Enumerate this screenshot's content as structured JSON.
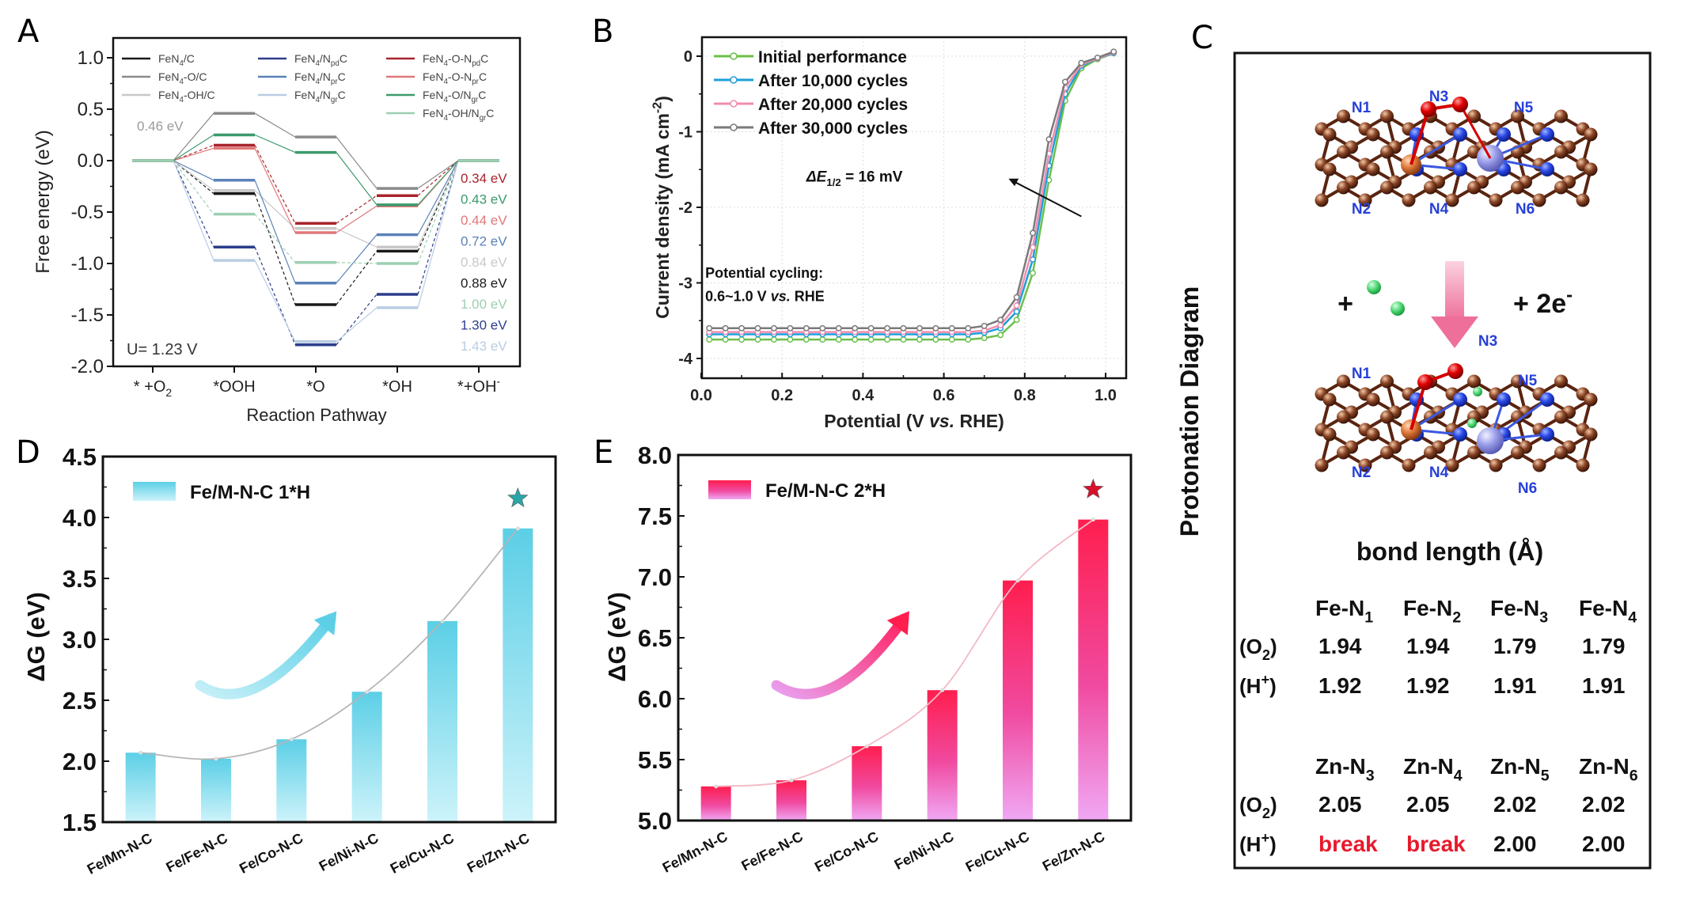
{
  "panel_labels": {
    "A": "A",
    "B": "B",
    "C": "C",
    "D": "D",
    "E": "E"
  },
  "chart_data": [
    {
      "panel": "A",
      "type": "line",
      "subtype": "free-energy step diagram",
      "xlabel": "Reaction Pathway",
      "ylabel": "Free energy (eV)",
      "categories": [
        "* +O_{2}",
        "*OOH",
        "*O",
        "*OH",
        "*+OH^{-}"
      ],
      "ylim": [
        -2.0,
        1.2
      ],
      "yticks": [
        -2.0,
        -1.5,
        -1.0,
        -0.5,
        0.0,
        0.5,
        1.0
      ],
      "ytick_labels": [
        "-2.0",
        "-1.5",
        "-1.0",
        "-0.5",
        "0.0",
        "0.5",
        "1.0"
      ],
      "grid": false,
      "legend": "top",
      "series": [
        {
          "name": "FeN_{4}/C",
          "color": "#1a1a1a",
          "values": [
            0,
            -0.32,
            -1.4,
            -0.88,
            0
          ]
        },
        {
          "name": "FeN_{4}-O/C",
          "color": "#8a8a8a",
          "values": [
            0,
            0.46,
            0.23,
            -0.27,
            0
          ]
        },
        {
          "name": "FeN_{4}-OH/C",
          "color": "#c8c8c8",
          "values": [
            0,
            -0.29,
            -0.66,
            -0.84,
            0
          ]
        },
        {
          "name": "FeN_{4}/N_{pd}C",
          "color": "#2c3e8c",
          "values": [
            0,
            -0.84,
            -1.79,
            -1.3,
            0
          ]
        },
        {
          "name": "FeN_{4}/N_{pr}C",
          "color": "#5b82b8",
          "values": [
            0,
            -0.19,
            -1.19,
            -0.72,
            0
          ]
        },
        {
          "name": "FeN_{4}/N_{gr}C",
          "color": "#b9cde2",
          "values": [
            0,
            -0.97,
            -1.76,
            -1.43,
            0
          ]
        },
        {
          "name": "FeN_{4}-O-N_{pd}C",
          "color": "#a8242c",
          "values": [
            0,
            0.15,
            -0.61,
            -0.34,
            0
          ]
        },
        {
          "name": "FeN_{4}-O-N_{pr}C",
          "color": "#e0787a",
          "values": [
            0,
            0.12,
            -0.7,
            -0.44,
            0
          ]
        },
        {
          "name": "FeN_{4}-O/N_{gr}C",
          "color": "#3b9a6c",
          "values": [
            0,
            0.25,
            0.08,
            -0.43,
            0
          ]
        },
        {
          "name": "FeN_{4}-OH/N_{gr}C",
          "color": "#9ccfb2",
          "values": [
            0,
            -0.52,
            -0.99,
            -1.0,
            0
          ]
        }
      ],
      "annotations": [
        {
          "text": "0.46 eV",
          "color": "#9a9a9a"
        },
        {
          "text": "U= 1.23 V",
          "color": "#333333"
        }
      ],
      "overpotential_labels": [
        {
          "text": "0.34 eV",
          "color": "#a8242c"
        },
        {
          "text": "0.43 eV",
          "color": "#3b9a6c"
        },
        {
          "text": "0.44 eV",
          "color": "#e0787a"
        },
        {
          "text": "0.72 eV",
          "color": "#5b82b8"
        },
        {
          "text": "0.84 eV",
          "color": "#c8c8c8"
        },
        {
          "text": "0.88 eV",
          "color": "#1a1a1a"
        },
        {
          "text": "1.00 eV",
          "color": "#9ccfb2"
        },
        {
          "text": "1.30 eV",
          "color": "#2c3e8c"
        },
        {
          "text": "1.43 eV",
          "color": "#b9cde2"
        }
      ]
    },
    {
      "panel": "B",
      "type": "line",
      "xlabel": "Potential (V *{vs.} RHE)",
      "ylabel": "Current density (mA cm^{-2})",
      "xlim": [
        0.0,
        1.05
      ],
      "ylim": [
        -4.26,
        0.25
      ],
      "xticks": [
        0.0,
        0.2,
        0.4,
        0.6,
        0.8,
        1.0
      ],
      "xtick_labels": [
        "0.0",
        "0.2",
        "0.4",
        "0.6",
        "0.8",
        "1.0"
      ],
      "yticks": [
        0,
        -1,
        -2,
        -3,
        -4
      ],
      "ytick_labels": [
        "0",
        "-1",
        "-2",
        "-3",
        "-4"
      ],
      "grid": true,
      "legend": "top-left",
      "x": [
        0.02,
        0.06,
        0.1,
        0.14,
        0.18,
        0.22,
        0.26,
        0.3,
        0.34,
        0.38,
        0.42,
        0.46,
        0.5,
        0.54,
        0.58,
        0.62,
        0.66,
        0.7,
        0.74,
        0.78,
        0.82,
        0.86,
        0.9,
        0.94,
        0.98,
        1.02
      ],
      "series": [
        {
          "name": "Initial performance",
          "color": "#6cbf4a",
          "values": [
            -3.75,
            -3.75,
            -3.75,
            -3.75,
            -3.75,
            -3.75,
            -3.75,
            -3.75,
            -3.75,
            -3.75,
            -3.75,
            -3.75,
            -3.75,
            -3.75,
            -3.75,
            -3.75,
            -3.75,
            -3.73,
            -3.69,
            -3.49,
            -2.87,
            -1.64,
            -0.59,
            -0.16,
            -0.04,
            0.04
          ]
        },
        {
          "name": "After 10,000 cycles",
          "color": "#1e9fd8",
          "values": [
            -3.68,
            -3.68,
            -3.68,
            -3.68,
            -3.68,
            -3.68,
            -3.68,
            -3.68,
            -3.68,
            -3.68,
            -3.68,
            -3.68,
            -3.68,
            -3.68,
            -3.68,
            -3.68,
            -3.68,
            -3.66,
            -3.6,
            -3.38,
            -2.69,
            -1.45,
            -0.5,
            -0.13,
            -0.03,
            0.04
          ]
        },
        {
          "name": "After 20,000 cycles",
          "color": "#f08cb0",
          "values": [
            -3.65,
            -3.65,
            -3.65,
            -3.65,
            -3.65,
            -3.65,
            -3.65,
            -3.65,
            -3.65,
            -3.65,
            -3.65,
            -3.65,
            -3.65,
            -3.65,
            -3.65,
            -3.65,
            -3.65,
            -3.63,
            -3.56,
            -3.3,
            -2.53,
            -1.29,
            -0.42,
            -0.11,
            -0.03,
            0.05
          ]
        },
        {
          "name": "After 30,000 cycles",
          "color": "#7a7a7a",
          "values": [
            -3.6,
            -3.6,
            -3.6,
            -3.6,
            -3.6,
            -3.6,
            -3.6,
            -3.6,
            -3.6,
            -3.6,
            -3.6,
            -3.6,
            -3.6,
            -3.6,
            -3.6,
            -3.6,
            -3.6,
            -3.57,
            -3.49,
            -3.19,
            -2.34,
            -1.1,
            -0.34,
            -0.09,
            -0.02,
            0.06
          ]
        }
      ],
      "annotations": [
        {
          "text": "*{ΔE}_{1/2} = 16 mV"
        },
        {
          "text": "Potential cycling:"
        },
        {
          "text": "0.6~1.0 V *{vs.} RHE"
        }
      ]
    },
    {
      "panel": "D",
      "type": "bar",
      "categories": [
        "Fe/Mn-N-C",
        "Fe/Fe-N-C",
        "Fe/Co-N-C",
        "Fe/Ni-N-C",
        "Fe/Cu-N-C",
        "Fe/Zn-N-C"
      ],
      "values": [
        2.07,
        2.02,
        2.18,
        2.57,
        3.15,
        3.91
      ],
      "series_name": "Fe/M-N-C 1*H",
      "xlabel": "",
      "ylabel": "ΔG (eV)",
      "ylim": [
        1.5,
        4.5
      ],
      "yticks": [
        1.5,
        2.0,
        2.5,
        3.0,
        3.5,
        4.0,
        4.5
      ],
      "ytick_labels": [
        "1.5",
        "2.0",
        "2.5",
        "3.0",
        "3.5",
        "4.0",
        "4.5"
      ],
      "grid": false,
      "legend": "top-left",
      "highlight": "Fe/Zn-N-C",
      "colors": {
        "bar_top": "#5ccfe6",
        "bar_bottom": "#cdf3fa",
        "star": "#2aa6a8",
        "trend_line": "#b5b5b5"
      }
    },
    {
      "panel": "E",
      "type": "bar",
      "categories": [
        "Fe/Mn-N-C",
        "Fe/Fe-N-C",
        "Fe/Co-N-C",
        "Fe/Ni-N-C",
        "Fe/Cu-N-C",
        "Fe/Zn-N-C"
      ],
      "values": [
        5.28,
        5.33,
        5.61,
        6.07,
        6.97,
        7.47
      ],
      "series_name": "Fe/M-N-C 2*H",
      "xlabel": "",
      "ylabel": "ΔG (eV)",
      "ylim": [
        5.0,
        8.0
      ],
      "yticks": [
        5.0,
        5.5,
        6.0,
        6.5,
        7.0,
        7.5,
        8.0
      ],
      "ytick_labels": [
        "5.0",
        "5.5",
        "6.0",
        "6.5",
        "7.0",
        "7.5",
        "8.0"
      ],
      "grid": false,
      "legend": "top-left",
      "highlight": "Fe/Zn-N-C",
      "colors": {
        "bar_top": "#ff1e4e",
        "bar_bottom": "#f0a0f0",
        "star": "#d8102c",
        "trend_line": "#f3b8c4"
      }
    }
  ],
  "panel_c": {
    "side_title": "Protonation Diagram",
    "reactant_plus": "+",
    "electrons": "+ 2e^{-}",
    "atom_labels": [
      "N1",
      "N2",
      "N3",
      "N4",
      "N5",
      "N6"
    ],
    "bond_table": {
      "title": "bond length (Å)",
      "groups": [
        {
          "headers": [
            "Fe-N_{1}",
            "Fe-N_{2}",
            "Fe-N_{3}",
            "Fe-N_{4}"
          ],
          "rows": [
            {
              "label": "(O_{2})",
              "values": [
                "1.94",
                "1.94",
                "1.79",
                "1.79"
              ]
            },
            {
              "label": "(H^{+})",
              "values": [
                "1.92",
                "1.92",
                "1.91",
                "1.91"
              ]
            }
          ]
        },
        {
          "headers": [
            "Zn-N_{3}",
            "Zn-N_{4}",
            "Zn-N_{5}",
            "Zn-N_{6}"
          ],
          "rows": [
            {
              "label": "(O_{2})",
              "values": [
                "2.05",
                "2.05",
                "2.02",
                "2.02"
              ]
            },
            {
              "label": "(H^{+})",
              "values": [
                "break",
                "break",
                "2.00",
                "2.00"
              ]
            }
          ]
        }
      ],
      "highlight_value": "break",
      "highlight_color": "#e8192c"
    },
    "atom_colors": {
      "carbon": "#6b2e14",
      "nitrogen": "#1f3fe0",
      "iron": "#e07b3c",
      "zinc": "#8c90e0",
      "oxygen": "#d40000",
      "hydrogen": "#46d46e",
      "label": "#2740d8"
    }
  }
}
